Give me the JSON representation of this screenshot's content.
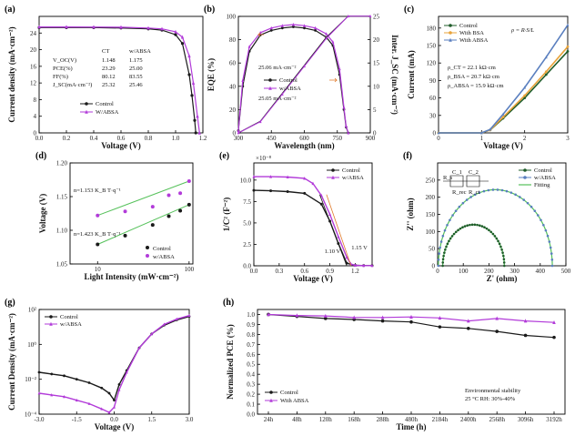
{
  "colors": {
    "control": "#1a1a1a",
    "absa": "#b23bd9",
    "bsa": "#e8a33a",
    "fit": "#4aa3c9",
    "green": "#55c15a",
    "darkgreen": "#1f5c2a",
    "blue": "#5a7fbf",
    "orange": "#e07a2a"
  },
  "chart_data": [
    {
      "type": "line",
      "panel_label": "(a)",
      "xlabel": "Voltage (V)",
      "ylabel": "Current density (mA·cm⁻²)",
      "xlim": [
        0.0,
        1.2
      ],
      "ylim": [
        0,
        28
      ],
      "xticks": [
        "0.0",
        "0.2",
        "0.4",
        "0.6",
        "0.8",
        "1.0",
        "1.2"
      ],
      "yticks": [
        "0",
        "4",
        "8",
        "12",
        "16",
        "20",
        "24"
      ],
      "series": [
        {
          "name": "Control",
          "x": [
            0,
            0.2,
            0.4,
            0.6,
            0.8,
            0.9,
            1.0,
            1.05,
            1.1,
            1.12,
            1.14,
            1.148
          ],
          "y": [
            25.3,
            25.3,
            25.3,
            25.2,
            25.0,
            24.7,
            23.6,
            21.5,
            14.0,
            9.0,
            3.0,
            0
          ]
        },
        {
          "name": "W/ABSA",
          "x": [
            0,
            0.2,
            0.4,
            0.6,
            0.8,
            0.9,
            1.0,
            1.05,
            1.1,
            1.13,
            1.16,
            1.175
          ],
          "y": [
            25.46,
            25.46,
            25.45,
            25.4,
            25.2,
            25.0,
            24.3,
            23.0,
            18.5,
            12.0,
            4.0,
            0
          ]
        }
      ],
      "table": {
        "headers": [
          "",
          "CT",
          "w/ABSA"
        ],
        "rows": [
          [
            "V_OC(V)",
            "1.148",
            "1.175"
          ],
          [
            "PCE(%)",
            "23.29",
            "25.00"
          ],
          [
            "FF(%)",
            "80.12",
            "83.55"
          ],
          [
            "J_SC(mA·cm⁻²)",
            "25.32",
            "25.46"
          ]
        ]
      },
      "legend": [
        "Control",
        "W/ABSA"
      ],
      "legend_position": "bottom-center"
    },
    {
      "type": "line",
      "panel_label": "(b)",
      "xlabel": "Wavelength (nm)",
      "ylabel": "EQE (%)",
      "y2label": "Inter. J_SC (mA·cm⁻²)",
      "xlim": [
        300,
        900
      ],
      "ylim": [
        0,
        100
      ],
      "y2lim": [
        0,
        25
      ],
      "xticks": [
        "300",
        "450",
        "600",
        "750",
        "900"
      ],
      "yticks": [
        "0",
        "20",
        "40",
        "60",
        "80",
        "100"
      ],
      "y2ticks": [
        "0",
        "5",
        "10",
        "15",
        "20",
        "25"
      ],
      "series": [
        {
          "name": "Control EQE",
          "x": [
            300,
            320,
            350,
            400,
            450,
            500,
            550,
            600,
            650,
            700,
            730,
            760,
            780,
            790,
            800
          ],
          "y": [
            2,
            40,
            70,
            84,
            88,
            90,
            91,
            90,
            88,
            82,
            75,
            50,
            20,
            5,
            0
          ]
        },
        {
          "name": "w/ABSA EQE",
          "x": [
            300,
            320,
            350,
            400,
            450,
            500,
            550,
            600,
            650,
            700,
            730,
            760,
            780,
            790,
            800
          ],
          "y": [
            2,
            45,
            74,
            86,
            90,
            92,
            93,
            92,
            90,
            85,
            78,
            55,
            22,
            6,
            0
          ]
        },
        {
          "name": "Control Jsc",
          "x": [
            300,
            400,
            500,
            600,
            700,
            800,
            900
          ],
          "y": [
            0,
            2.5,
            8.5,
            14.5,
            20.5,
            25.06,
            25.06
          ]
        },
        {
          "name": "w/ABSA Jsc",
          "x": [
            300,
            400,
            500,
            600,
            700,
            800,
            900
          ],
          "y": [
            0,
            2.4,
            8.3,
            14.3,
            20.3,
            25.05,
            25.05
          ]
        }
      ],
      "annotations": [
        "25.06 mA·cm⁻²",
        "25.05 mA·cm⁻²"
      ],
      "legend": [
        "Control",
        "w/ABSA"
      ],
      "legend_position": "center"
    },
    {
      "type": "line",
      "panel_label": "(c)",
      "xlabel": "Voltage (V)",
      "ylabel": "Current (mA)",
      "xlim": [
        0,
        3
      ],
      "ylim": [
        0,
        200
      ],
      "xticks": [
        "0",
        "1",
        "2",
        "3"
      ],
      "yticks": [
        "0",
        "30",
        "60",
        "90",
        "120",
        "150",
        "180"
      ],
      "series": [
        {
          "name": "Control",
          "x": [
            0,
            1.0,
            1.2,
            1.5,
            2.0,
            2.5,
            3.0
          ],
          "y": [
            0,
            0,
            5,
            25,
            60,
            100,
            140
          ]
        },
        {
          "name": "With BSA",
          "x": [
            0,
            1.0,
            1.2,
            1.5,
            2.0,
            2.5,
            3.0
          ],
          "y": [
            0,
            0,
            5,
            27,
            64,
            105,
            148
          ]
        },
        {
          "name": "With ABSA",
          "x": [
            0,
            1.0,
            1.2,
            1.5,
            2.0,
            2.5,
            3.0
          ],
          "y": [
            0,
            0,
            6,
            32,
            78,
            130,
            185
          ]
        }
      ],
      "annotations": [
        "ρ = R·S/L",
        "ρ_CT = 22.1 kΩ·cm",
        "ρ_BSA = 20.7 kΩ·cm",
        "ρ_ABSA = 15.9 kΩ·cm"
      ],
      "legend": [
        "Control",
        "With BSA",
        "With ABSA"
      ],
      "legend_position": "top-left"
    },
    {
      "type": "scatter",
      "panel_label": "(d)",
      "xlabel": "Light Intensity (mW·cm⁻²)",
      "ylabel": "Voltage (V)",
      "xlim": [
        5,
        110
      ],
      "xscale": "log",
      "ylim": [
        1.05,
        1.2
      ],
      "xticks": [
        "10",
        "100"
      ],
      "yticks": [
        "1.05",
        "1.10",
        "1.15",
        "1.20"
      ],
      "series": [
        {
          "name": "Control",
          "x": [
            10,
            20,
            40,
            60,
            80,
            100
          ],
          "y": [
            1.079,
            1.092,
            1.108,
            1.121,
            1.129,
            1.138
          ]
        },
        {
          "name": "w/ABSA",
          "x": [
            10,
            20,
            40,
            60,
            80,
            100
          ],
          "y": [
            1.122,
            1.128,
            1.135,
            1.152,
            1.155,
            1.173
          ]
        }
      ],
      "annotations": [
        "n=1.153 K_B T·q⁻¹",
        "n=1.423 K_B T·q⁻¹"
      ],
      "legend": [
        "Control",
        "w/ABSA"
      ],
      "legend_position": "bottom-right"
    },
    {
      "type": "line",
      "panel_label": "(e)",
      "xlabel": "Voltage (V)",
      "ylabel": "1/C² (F⁻²)",
      "xlim": [
        0,
        1.4
      ],
      "ylim": [
        0,
        12
      ],
      "y_exponent": "×10⁻⁸",
      "xticks": [
        "0.0",
        "0.3",
        "0.6",
        "0.9",
        "1.2"
      ],
      "yticks": [
        "0.0",
        "2.5",
        "5.0",
        "7.5",
        "10.0"
      ],
      "series": [
        {
          "name": "Control",
          "x": [
            0,
            0.2,
            0.4,
            0.6,
            0.8,
            0.9,
            1.0,
            1.1,
            1.2,
            1.3,
            1.4
          ],
          "y": [
            8.8,
            8.75,
            8.65,
            8.45,
            7.2,
            5.2,
            2.6,
            0.3,
            0.05,
            0.02,
            0.02
          ]
        },
        {
          "name": "w/ABSA",
          "x": [
            0,
            0.2,
            0.4,
            0.6,
            0.7,
            0.8,
            0.9,
            1.0,
            1.1,
            1.15,
            1.2,
            1.3,
            1.4
          ],
          "y": [
            10.4,
            10.4,
            10.35,
            10.2,
            9.6,
            8.2,
            6.0,
            3.4,
            1.0,
            0.2,
            0.05,
            0.02,
            0.02
          ]
        }
      ],
      "annotations": [
        "1.10 V",
        "1.15 V"
      ],
      "legend": [
        "Control",
        "w/ABSA"
      ],
      "legend_position": "top-right"
    },
    {
      "type": "scatter",
      "panel_label": "(f)",
      "xlabel": "Z' (ohm)",
      "ylabel": "Z'' (ohm)",
      "xlim": [
        0,
        500
      ],
      "ylim": [
        0,
        300
      ],
      "xticks": [
        "0",
        "100",
        "200",
        "300",
        "400",
        "500"
      ],
      "yticks": [
        "0",
        "50",
        "100",
        "150",
        "200",
        "250"
      ],
      "series": [
        {
          "name": "Control",
          "shape": "semicircle",
          "center": [
            140,
            0
          ],
          "radius": 120
        },
        {
          "name": "w/ABSA",
          "shape": "semicircle",
          "center": [
            225,
            0
          ],
          "radius": 222
        }
      ],
      "legend": [
        "Control",
        "w/ABSA",
        "Fitting"
      ],
      "legend_position": "top-right",
      "annotations": [
        "R_s",
        "C_1",
        "C_2",
        "R_rec",
        "R_ct"
      ]
    },
    {
      "type": "line",
      "panel_label": "(g)",
      "xlabel": "Voltage (V)",
      "ylabel": "Current Density (mA·cm⁻²)",
      "xlim": [
        -3,
        3
      ],
      "yscale": "log",
      "ylim_exp": [
        -4,
        2
      ],
      "xticks": [
        "-3.0",
        "-1.5",
        "0.0",
        "1.5",
        "3.0"
      ],
      "yticks": [
        "10⁻⁴",
        "10⁻²",
        "10⁰",
        "10²"
      ],
      "series": [
        {
          "name": "Control",
          "x": [
            -3,
            -2.5,
            -2,
            -1.5,
            -1,
            -0.5,
            -0.2,
            0,
            0.2,
            0.5,
            1,
            1.5,
            2,
            2.5,
            3
          ],
          "logy": [
            -1.6,
            -1.7,
            -1.8,
            -2.0,
            -2.2,
            -2.5,
            -2.8,
            -3.2,
            -2.3,
            -1.5,
            -0.2,
            0.6,
            1.1,
            1.4,
            1.6
          ]
        },
        {
          "name": "w/ABSA",
          "x": [
            -3,
            -2.5,
            -2,
            -1.5,
            -1,
            -0.5,
            -0.2,
            0,
            0.2,
            0.5,
            1,
            1.5,
            2,
            2.5,
            3
          ],
          "logy": [
            -2.8,
            -2.9,
            -3.0,
            -3.2,
            -3.4,
            -3.7,
            -3.9,
            -3.6,
            -2.6,
            -1.6,
            -0.2,
            0.6,
            1.15,
            1.45,
            1.65
          ]
        }
      ],
      "legend": [
        "Control",
        "w/ABSA"
      ],
      "legend_position": "top-left"
    },
    {
      "type": "line",
      "panel_label": "(h)",
      "xlabel": "Time (h)",
      "ylabel": "Normalized PCE (%)",
      "ylim": [
        0.0,
        1.05
      ],
      "categories": [
        "24h",
        "48h",
        "120h",
        "168h",
        "288h",
        "480h",
        "2184h",
        "2400h",
        "2568h",
        "3096h",
        "3192h"
      ],
      "yticks": [
        "0.0",
        "0.1",
        "0.2",
        "0.3",
        "0.4",
        "0.5",
        "0.6",
        "0.7",
        "0.8",
        "0.9",
        "1.0"
      ],
      "series": [
        {
          "name": "Control",
          "values": [
            1.0,
            0.98,
            0.96,
            0.95,
            0.935,
            0.925,
            0.875,
            0.86,
            0.83,
            0.79,
            0.77
          ]
        },
        {
          "name": "With ABSA",
          "values": [
            1.0,
            0.99,
            0.985,
            0.97,
            0.97,
            0.975,
            0.965,
            0.935,
            0.96,
            0.935,
            0.92
          ]
        }
      ],
      "annotations": [
        "Environmental stability",
        "25 °C   RH: 30%-40%"
      ],
      "legend": [
        "Control",
        "With ABSA"
      ],
      "legend_position": "bottom-left"
    }
  ]
}
